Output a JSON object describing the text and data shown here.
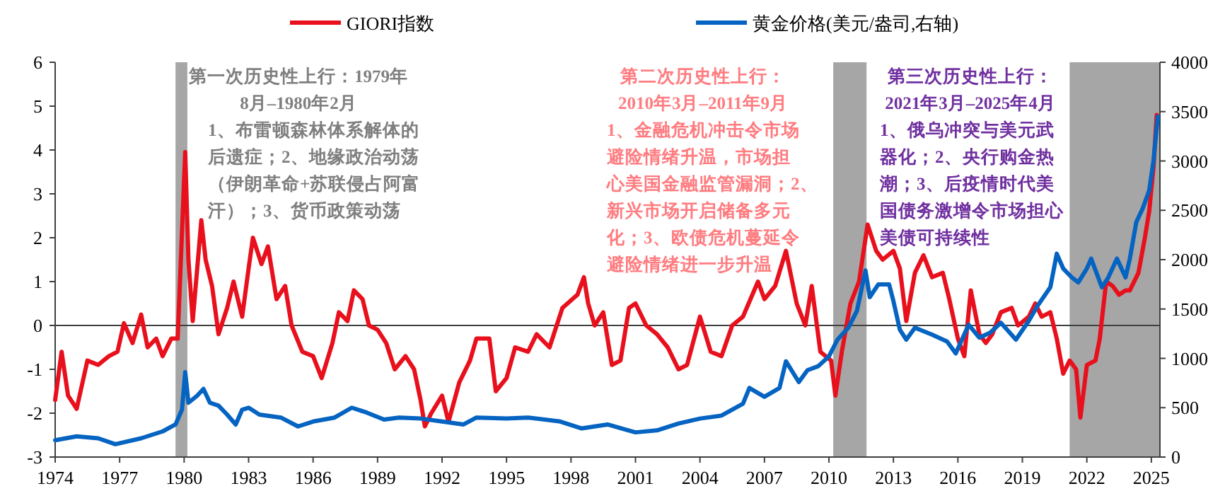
{
  "chart_data": {
    "type": "line",
    "xlim": [
      1974,
      2025.4
    ],
    "xticks": [
      1974,
      1977,
      1980,
      1983,
      1986,
      1989,
      1992,
      1995,
      1998,
      2001,
      2004,
      2007,
      2010,
      2013,
      2016,
      2019,
      2022,
      2025
    ],
    "ylim": [
      -3,
      6
    ],
    "yticks": [
      -3,
      -2,
      -1,
      0,
      1,
      2,
      3,
      4,
      5,
      6
    ],
    "y2lim": [
      0,
      4000
    ],
    "y2ticks": [
      0,
      500,
      1000,
      1500,
      2000,
      2500,
      3000,
      3500,
      4000
    ],
    "legend": "top",
    "grid": false,
    "series": [
      {
        "name": "GIORI指数",
        "color": "#e8101c",
        "x": [
          1974.0,
          1974.3,
          1974.6,
          1975.0,
          1975.5,
          1976.0,
          1976.5,
          1976.9,
          1977.2,
          1977.6,
          1978.0,
          1978.3,
          1978.7,
          1979.0,
          1979.4,
          1979.7,
          1980.05,
          1980.2,
          1980.4,
          1980.8,
          1981.0,
          1981.3,
          1981.6,
          1982.0,
          1982.3,
          1982.7,
          1983.0,
          1983.2,
          1983.6,
          1983.9,
          1984.3,
          1984.7,
          1985.0,
          1985.5,
          1986.0,
          1986.4,
          1986.9,
          1987.2,
          1987.6,
          1987.9,
          1988.3,
          1988.6,
          1989.0,
          1989.4,
          1989.8,
          1990.3,
          1990.7,
          1991.0,
          1991.2,
          1991.5,
          1992.0,
          1992.3,
          1992.8,
          1993.3,
          1993.6,
          1994.2,
          1994.5,
          1995.0,
          1995.4,
          1996.0,
          1996.4,
          1997.0,
          1997.6,
          1998.3,
          1998.6,
          1998.8,
          1999.1,
          1999.5,
          1999.9,
          2000.3,
          2000.7,
          2001.0,
          2001.5,
          2002.0,
          2002.5,
          2003.0,
          2003.4,
          2004.0,
          2004.5,
          2005.0,
          2005.5,
          2006.0,
          2006.7,
          2007.0,
          2007.5,
          2008.0,
          2008.5,
          2008.9,
          2009.2,
          2009.6,
          2010.1,
          2010.3,
          2010.6,
          2011.0,
          2011.4,
          2011.8,
          2012.2,
          2012.5,
          2013.0,
          2013.3,
          2013.6,
          2014.0,
          2014.4,
          2014.8,
          2015.3,
          2015.6,
          2016.0,
          2016.3,
          2016.6,
          2017.0,
          2017.3,
          2017.6,
          2018.0,
          2018.5,
          2018.8,
          2019.3,
          2019.6,
          2019.9,
          2020.3,
          2020.6,
          2020.9,
          2021.2,
          2021.5,
          2021.7,
          2022.0,
          2022.4,
          2022.6,
          2022.9,
          2023.2,
          2023.5,
          2023.8,
          2024.0,
          2024.4,
          2024.7,
          2024.9,
          2025.1,
          2025.25
        ],
        "values": [
          -1.7,
          -0.6,
          -1.6,
          -1.9,
          -0.8,
          -0.9,
          -0.7,
          -0.6,
          0.05,
          -0.4,
          0.25,
          -0.5,
          -0.3,
          -0.7,
          -0.3,
          -0.3,
          3.95,
          1.5,
          0.1,
          2.4,
          1.5,
          0.9,
          -0.2,
          0.4,
          1.0,
          0.2,
          1.3,
          2.0,
          1.4,
          1.8,
          0.6,
          0.9,
          0.0,
          -0.6,
          -0.7,
          -1.2,
          -0.4,
          0.3,
          0.1,
          0.8,
          0.6,
          0.0,
          -0.1,
          -0.4,
          -1.0,
          -0.7,
          -1.0,
          -1.7,
          -2.3,
          -2.0,
          -1.6,
          -2.2,
          -1.3,
          -0.8,
          -0.3,
          -0.3,
          -1.5,
          -1.2,
          -0.5,
          -0.6,
          -0.2,
          -0.5,
          0.4,
          0.7,
          1.1,
          0.5,
          0.0,
          0.3,
          -0.9,
          -0.8,
          0.4,
          0.5,
          0.0,
          -0.2,
          -0.5,
          -1.0,
          -0.9,
          0.2,
          -0.6,
          -0.7,
          0.0,
          0.2,
          1.0,
          0.6,
          0.9,
          1.7,
          0.5,
          0.0,
          0.9,
          -0.6,
          -0.8,
          -1.6,
          -0.6,
          0.5,
          1.0,
          2.3,
          1.7,
          1.5,
          1.7,
          1.3,
          0.1,
          1.2,
          1.6,
          1.1,
          1.2,
          0.6,
          -0.3,
          -0.7,
          0.8,
          -0.2,
          -0.4,
          -0.2,
          0.3,
          0.4,
          0.0,
          0.2,
          0.5,
          0.2,
          0.3,
          -0.3,
          -1.1,
          -0.8,
          -1.0,
          -2.1,
          -0.9,
          -0.8,
          -0.3,
          1.0,
          0.9,
          0.7,
          0.8,
          0.8,
          1.2,
          2.0,
          2.6,
          3.6,
          4.8
        ]
      },
      {
        "name": "黄金价格(美元/盎司,右轴)",
        "color": "#0563c1",
        "axis": "y2",
        "x": [
          1974.0,
          1975.0,
          1976.0,
          1976.8,
          1978.0,
          1979.0,
          1979.6,
          1979.9,
          1980.05,
          1980.2,
          1980.6,
          1980.9,
          1981.2,
          1981.6,
          1982.0,
          1982.4,
          1982.7,
          1983.0,
          1983.5,
          1984.5,
          1985.3,
          1986.0,
          1987.0,
          1987.8,
          1988.5,
          1989.3,
          1990.0,
          1991.0,
          1992.0,
          1993.0,
          1993.6,
          1995.0,
          1996.0,
          1997.5,
          1998.5,
          1999.7,
          2000.5,
          2001.0,
          2002.0,
          2003.0,
          2004.0,
          2005.0,
          2006.0,
          2006.3,
          2007.0,
          2007.7,
          2008.0,
          2008.6,
          2009.0,
          2009.5,
          2010.0,
          2010.4,
          2010.9,
          2011.3,
          2011.7,
          2011.9,
          2012.3,
          2012.8,
          2013.0,
          2013.3,
          2013.6,
          2014.0,
          2014.8,
          2015.5,
          2015.9,
          2016.5,
          2017.0,
          2017.5,
          2018.0,
          2018.7,
          2019.3,
          2019.7,
          2020.3,
          2020.6,
          2020.9,
          2021.3,
          2021.6,
          2022.0,
          2022.2,
          2022.7,
          2023.0,
          2023.4,
          2023.8,
          2024.0,
          2024.3,
          2024.6,
          2024.9,
          2025.1,
          2025.3
        ],
        "values": [
          170,
          210,
          190,
          130,
          190,
          260,
          330,
          480,
          860,
          550,
          620,
          690,
          550,
          520,
          430,
          330,
          480,
          500,
          430,
          400,
          310,
          360,
          400,
          500,
          450,
          380,
          400,
          390,
          360,
          330,
          400,
          390,
          400,
          360,
          290,
          330,
          280,
          250,
          270,
          340,
          390,
          420,
          540,
          700,
          610,
          700,
          970,
          760,
          880,
          920,
          1020,
          1190,
          1310,
          1480,
          1890,
          1620,
          1750,
          1750,
          1580,
          1290,
          1190,
          1310,
          1240,
          1170,
          1050,
          1340,
          1210,
          1260,
          1360,
          1190,
          1380,
          1530,
          1720,
          2060,
          1910,
          1820,
          1770,
          1910,
          2010,
          1720,
          1820,
          2010,
          1820,
          2010,
          2380,
          2520,
          2700,
          3000,
          3450
        ]
      }
    ],
    "ref_lines": [
      {
        "axis": "y",
        "value": 0,
        "color": "#404040"
      }
    ],
    "bands": [
      {
        "axis": "x",
        "from": 1979.6,
        "to": 1980.15,
        "color": "#a6a6a6"
      },
      {
        "axis": "x",
        "from": 2010.2,
        "to": 2011.75,
        "color": "#a6a6a6"
      },
      {
        "axis": "x",
        "from": 2021.2,
        "to": 2025.4,
        "color": "#a6a6a6"
      }
    ],
    "annotations": [
      "第一次历史性上行：1979年",
      "8月–1980年2月",
      "1、布雷顿森林体系解体的",
      "后遗症；2、地缘政治动荡",
      "（伊朗革命+苏联侵占阿富",
      "汗）；3、货币政策动荡",
      "第二次历史性上行：",
      "2010年3月–2011年9月",
      "1、金融危机冲击令市场",
      "避险情绪升温，市场担",
      "心美国金融监管漏洞；2、",
      "新兴市场开启储备多元",
      "化；3、欧债危机蔓延令",
      "避险情绪进一步升温",
      "第三次历史性上行：",
      "2021年3月–2025年4月",
      "1、俄乌冲突与美元武",
      "器化；2、央行购金热",
      "潮；3、后疫情时代美",
      "国债务激增令市场担心",
      "美债可持续性"
    ]
  }
}
